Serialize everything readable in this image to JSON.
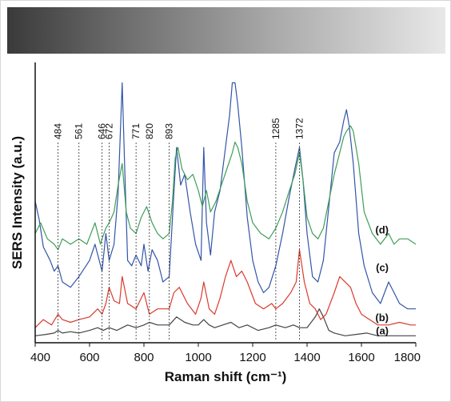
{
  "chart_data": {
    "type": "line",
    "xlabel": "Raman shift (cm⁻¹)",
    "ylabel": "SERS Intensity (a.u.)",
    "xlim": [
      400,
      1800
    ],
    "ylim": [
      0,
      100
    ],
    "x_ticks": [
      400,
      600,
      800,
      1000,
      1200,
      1400,
      1600,
      1800
    ],
    "grid": false,
    "peak_labels": [
      "484",
      "561",
      "646",
      "672",
      "771",
      "820",
      "893",
      "1285",
      "1372"
    ],
    "peak_positions": [
      484,
      561,
      646,
      672,
      771,
      820,
      893,
      1285,
      1372
    ],
    "series": [
      {
        "name": "(a)",
        "color": "#444444",
        "label_at": [
          1700,
          2.5
        ],
        "x": [
          400,
          440,
          470,
          484,
          500,
          530,
          560,
          600,
          630,
          650,
          672,
          700,
          720,
          740,
          771,
          800,
          820,
          850,
          893,
          920,
          950,
          980,
          1000,
          1020,
          1040,
          1060,
          1090,
          1120,
          1150,
          1180,
          1220,
          1260,
          1285,
          1320,
          1350,
          1372,
          1400,
          1430,
          1445,
          1460,
          1480,
          1500,
          1540,
          1580,
          1620,
          1660,
          1700,
          1740,
          1780,
          1800
        ],
        "y": [
          2,
          2.5,
          3,
          4,
          3,
          3.5,
          3,
          4,
          5,
          4,
          5,
          4,
          5,
          6,
          5,
          6,
          7,
          6,
          6,
          9,
          7,
          6,
          6,
          8,
          6,
          5,
          6,
          7,
          5,
          6,
          4,
          5,
          6,
          5,
          6,
          5,
          5,
          9,
          12,
          9,
          4,
          3,
          2,
          2.5,
          3,
          2,
          2,
          2,
          2,
          2
        ]
      },
      {
        "name": "(b)",
        "color": "#d93a2e",
        "label_at": [
          1700,
          7.5
        ],
        "x": [
          400,
          430,
          460,
          484,
          500,
          530,
          561,
          600,
          630,
          646,
          660,
          672,
          690,
          710,
          720,
          740,
          771,
          790,
          800,
          820,
          850,
          893,
          910,
          930,
          960,
          990,
          1010,
          1020,
          1040,
          1060,
          1080,
          1100,
          1120,
          1140,
          1160,
          1180,
          1210,
          1240,
          1270,
          1285,
          1310,
          1340,
          1360,
          1372,
          1390,
          1410,
          1430,
          1450,
          1470,
          1500,
          1520,
          1540,
          1560,
          1580,
          1600,
          1630,
          1660,
          1700,
          1740,
          1780,
          1800
        ],
        "y": [
          5,
          8,
          6,
          10,
          8,
          7,
          8,
          9,
          12,
          10,
          14,
          20,
          15,
          14,
          24,
          14,
          12,
          16,
          18,
          10,
          12,
          12,
          18,
          20,
          14,
          10,
          16,
          22,
          12,
          10,
          16,
          24,
          30,
          24,
          26,
          22,
          14,
          12,
          14,
          12,
          14,
          18,
          22,
          34,
          22,
          14,
          12,
          8,
          10,
          18,
          24,
          22,
          20,
          14,
          10,
          8,
          6,
          6,
          7,
          6,
          6
        ]
      },
      {
        "name": "(c)",
        "color": "#3355a8",
        "label_at": [
          1700,
          26
        ],
        "x": [
          400,
          415,
          430,
          455,
          470,
          484,
          500,
          530,
          561,
          600,
          620,
          646,
          660,
          672,
          690,
          705,
          720,
          730,
          740,
          755,
          771,
          790,
          800,
          815,
          830,
          850,
          870,
          893,
          910,
          920,
          935,
          950,
          970,
          990,
          1010,
          1020,
          1030,
          1045,
          1060,
          1080,
          1100,
          1115,
          1125,
          1135,
          1145,
          1160,
          1180,
          1200,
          1220,
          1240,
          1260,
          1285,
          1310,
          1335,
          1355,
          1372,
          1385,
          1400,
          1420,
          1440,
          1460,
          1480,
          1500,
          1520,
          1535,
          1545,
          1555,
          1570,
          1590,
          1610,
          1640,
          1670,
          1700,
          1720,
          1740,
          1770,
          1800
        ],
        "y": [
          52,
          45,
          35,
          30,
          26,
          28,
          22,
          20,
          24,
          30,
          36,
          26,
          40,
          30,
          36,
          55,
          96,
          62,
          30,
          28,
          32,
          28,
          36,
          26,
          34,
          30,
          22,
          24,
          55,
          72,
          58,
          62,
          48,
          36,
          30,
          72,
          44,
          32,
          48,
          56,
          72,
          84,
          96,
          96,
          88,
          72,
          46,
          30,
          22,
          18,
          20,
          28,
          40,
          54,
          64,
          72,
          60,
          40,
          24,
          22,
          30,
          50,
          70,
          74,
          82,
          86,
          80,
          66,
          40,
          28,
          18,
          14,
          22,
          18,
          14,
          12,
          12
        ]
      },
      {
        "name": "(d)",
        "color": "#3f9e58",
        "label_at": [
          1700,
          40
        ],
        "x": [
          400,
          420,
          445,
          470,
          484,
          500,
          530,
          561,
          590,
          620,
          640,
          646,
          660,
          672,
          690,
          705,
          720,
          735,
          750,
          771,
          790,
          810,
          830,
          850,
          870,
          893,
          905,
          915,
          925,
          940,
          960,
          980,
          1000,
          1015,
          1030,
          1045,
          1065,
          1085,
          1105,
          1125,
          1135,
          1145,
          1160,
          1180,
          1200,
          1230,
          1260,
          1285,
          1310,
          1335,
          1355,
          1372,
          1385,
          1400,
          1420,
          1440,
          1460,
          1480,
          1500,
          1520,
          1535,
          1545,
          1560,
          1570,
          1590,
          1610,
          1640,
          1670,
          1700,
          1720,
          1740,
          1770,
          1800
        ],
        "y": [
          40,
          44,
          38,
          36,
          34,
          38,
          36,
          38,
          36,
          44,
          36,
          38,
          42,
          44,
          48,
          58,
          66,
          48,
          42,
          40,
          46,
          50,
          44,
          40,
          38,
          40,
          52,
          68,
          72,
          64,
          60,
          62,
          56,
          50,
          56,
          48,
          52,
          58,
          64,
          70,
          74,
          72,
          66,
          52,
          44,
          40,
          38,
          42,
          48,
          56,
          62,
          70,
          60,
          46,
          40,
          38,
          42,
          52,
          62,
          70,
          76,
          78,
          80,
          78,
          66,
          48,
          40,
          36,
          40,
          36,
          38,
          38,
          36
        ]
      }
    ]
  }
}
